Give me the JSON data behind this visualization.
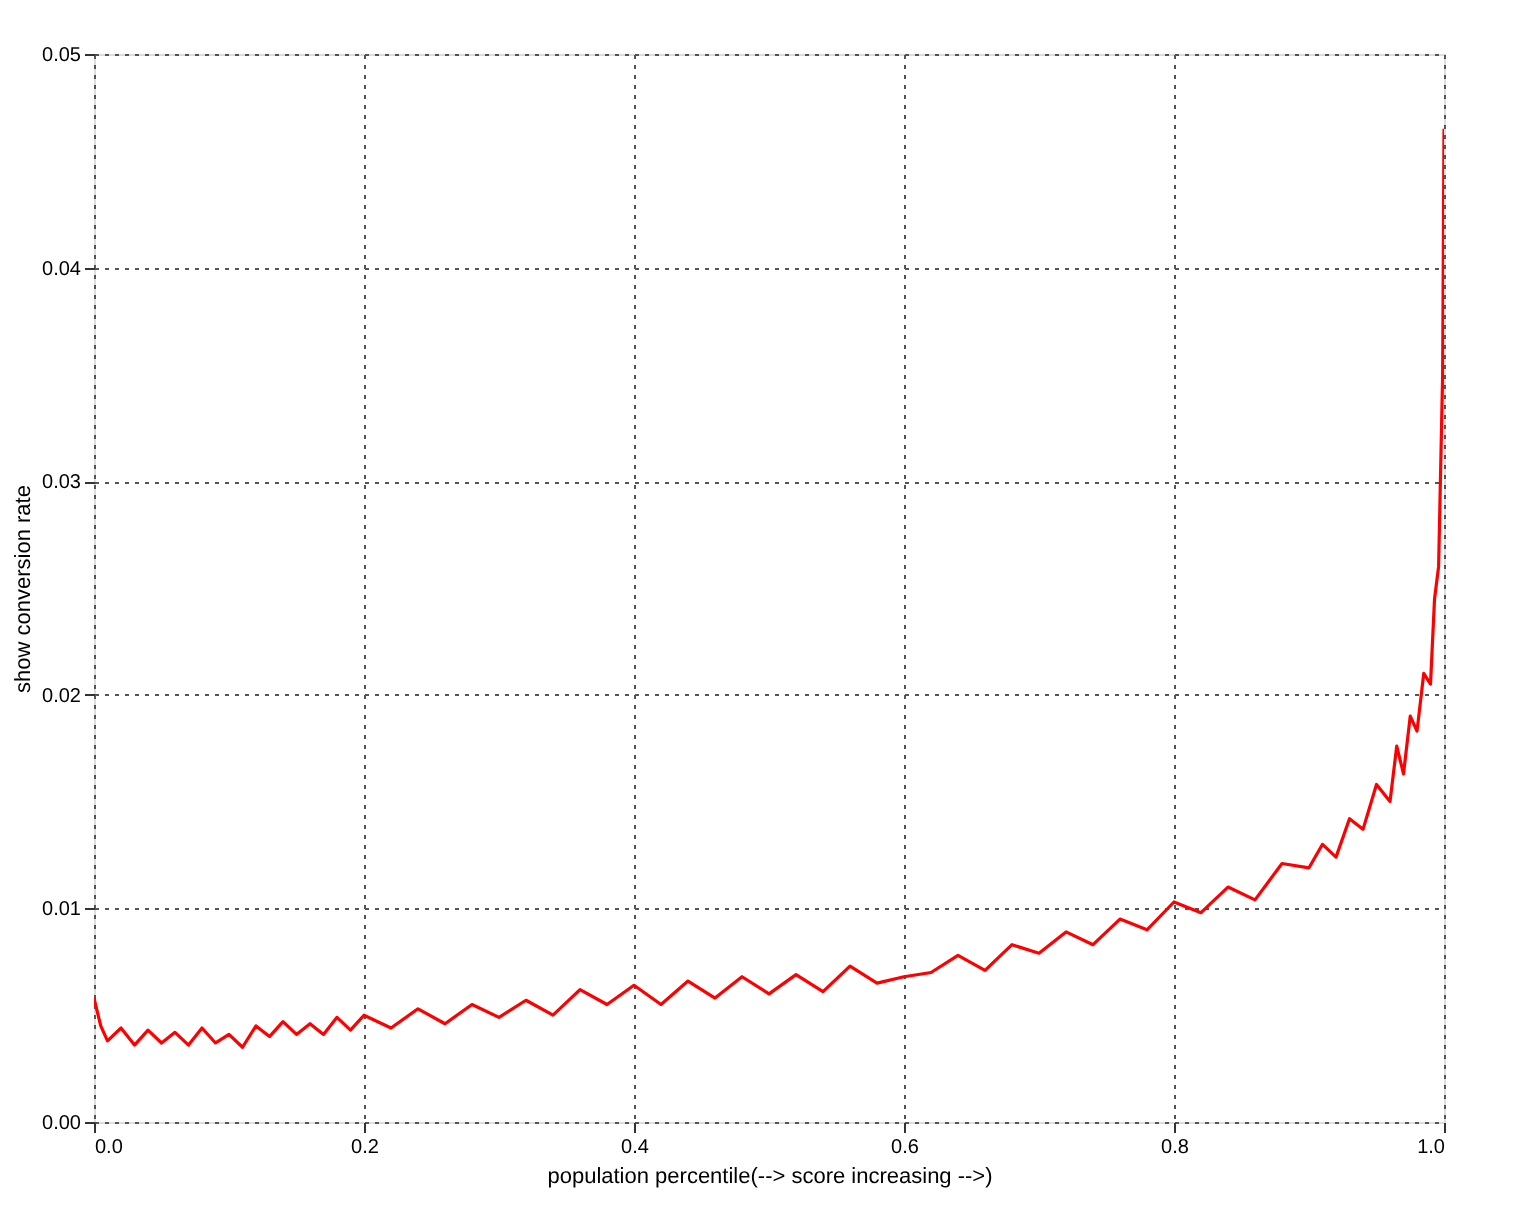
{
  "chart_data": {
    "type": "line",
    "xlabel": "population percentile(--> score increasing -->)",
    "ylabel": "show conversion rate",
    "x": [
      0,
      0.005,
      0.01,
      0.02,
      0.03,
      0.04,
      0.05,
      0.06,
      0.07,
      0.08,
      0.09,
      0.1,
      0.11,
      0.12,
      0.13,
      0.14,
      0.15,
      0.16,
      0.17,
      0.18,
      0.19,
      0.2,
      0.22,
      0.24,
      0.26,
      0.28,
      0.3,
      0.32,
      0.34,
      0.36,
      0.38,
      0.4,
      0.42,
      0.44,
      0.46,
      0.48,
      0.5,
      0.52,
      0.54,
      0.56,
      0.58,
      0.6,
      0.62,
      0.64,
      0.66,
      0.68,
      0.7,
      0.72,
      0.74,
      0.76,
      0.78,
      0.8,
      0.82,
      0.84,
      0.86,
      0.88,
      0.9,
      0.91,
      0.92,
      0.93,
      0.94,
      0.95,
      0.96,
      0.965,
      0.97,
      0.975,
      0.98,
      0.985,
      0.99,
      0.993,
      0.996,
      0.998,
      0.999,
      1.0
    ],
    "series": [
      {
        "color": "#ff0000",
        "values": [
          0.0058,
          0.0045,
          0.0038,
          0.0044,
          0.0036,
          0.0043,
          0.0037,
          0.0042,
          0.0036,
          0.0044,
          0.0037,
          0.0041,
          0.0035,
          0.0045,
          0.004,
          0.0047,
          0.0041,
          0.0046,
          0.0041,
          0.0049,
          0.0043,
          0.005,
          0.0044,
          0.0053,
          0.0046,
          0.0055,
          0.0049,
          0.0057,
          0.005,
          0.0062,
          0.0055,
          0.0064,
          0.0055,
          0.0066,
          0.0058,
          0.0068,
          0.006,
          0.0069,
          0.0061,
          0.0073,
          0.0065,
          0.0068,
          0.007,
          0.0078,
          0.0071,
          0.0083,
          0.0079,
          0.0089,
          0.0083,
          0.0095,
          0.009,
          0.0103,
          0.0098,
          0.011,
          0.0104,
          0.0121,
          0.0119,
          0.013,
          0.0124,
          0.0142,
          0.0137,
          0.0158,
          0.015,
          0.0176,
          0.0163,
          0.019,
          0.0183,
          0.021,
          0.0205,
          0.0245,
          0.026,
          0.032,
          0.035,
          0.0465
        ]
      }
    ],
    "xlim": [
      0,
      1
    ],
    "ylim": [
      0,
      0.05
    ],
    "xticks": [
      {
        "value": 0,
        "label": "0.0"
      },
      0.2,
      0.4,
      0.6,
      0.8,
      {
        "value": 1,
        "label": "1.0"
      }
    ],
    "yticks": [
      {
        "value": 0,
        "label": "0.00"
      },
      {
        "value": 0.01,
        "label": "0.01"
      },
      {
        "value": 0.02,
        "label": "0.02"
      },
      {
        "value": 0.03,
        "label": "0.03"
      },
      {
        "value": 0.04,
        "label": "0.04"
      },
      {
        "value": 0.05,
        "label": "0.05"
      }
    ],
    "grid": true,
    "line_style": "solid",
    "marker": "none"
  }
}
